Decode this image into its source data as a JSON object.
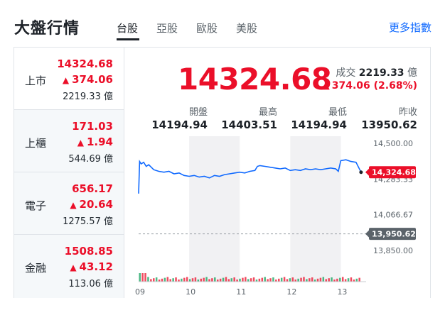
{
  "header": {
    "title": "大盤行情",
    "tabs": [
      {
        "label": "台股",
        "active": true
      },
      {
        "label": "亞股",
        "active": false
      },
      {
        "label": "歐股",
        "active": false
      },
      {
        "label": "美股",
        "active": false
      }
    ],
    "more_link": "更多指數"
  },
  "sidebar": {
    "items": [
      {
        "name": "上市",
        "price": "14324.68",
        "change": "374.06",
        "volume": "2219.33 億"
      },
      {
        "name": "上櫃",
        "price": "171.03",
        "change": "1.94",
        "volume": "544.69 億"
      },
      {
        "name": "電子",
        "price": "656.17",
        "change": "20.64",
        "volume": "1275.57 億"
      },
      {
        "name": "金融",
        "price": "1508.85",
        "change": "43.12",
        "volume": "113.06 億"
      }
    ]
  },
  "quote": {
    "price": "14324.68",
    "volume_label": "成交",
    "volume_value": "2219.33",
    "volume_unit": "億",
    "change": "374.06 (2.68%)",
    "stats": [
      {
        "label": "開盤",
        "value": "14194.94"
      },
      {
        "label": "最高",
        "value": "14403.51"
      },
      {
        "label": "最低",
        "value": "14194.94"
      },
      {
        "label": "昨收",
        "value": "13950.62"
      }
    ]
  },
  "colors": {
    "up": "#eb0f29",
    "line": "#0f69ff",
    "prev_close_tag": "#5b636a"
  },
  "chart_data": {
    "type": "line",
    "x_tick_labels": [
      "09",
      "10",
      "11",
      "12",
      "13"
    ],
    "x_range": [
      9.0,
      13.5
    ],
    "ylim": [
      13850,
      14500
    ],
    "y_tick_labels": [
      "14,500.00",
      "14,283.33",
      "14,066.67",
      "13,850.00"
    ],
    "current_price_label": "14,324.68",
    "prev_close_label": "13,950.62",
    "prev_close": 13950.62,
    "series": [
      {
        "x": [
          9.0,
          9.02,
          9.05,
          9.1,
          9.15,
          9.2,
          9.3,
          9.4,
          9.5,
          9.6,
          9.7,
          9.8,
          9.9,
          10.0,
          10.1,
          10.2,
          10.3,
          10.4,
          10.5,
          10.6,
          10.7,
          10.8,
          10.9,
          11.0,
          11.1,
          11.2,
          11.3,
          11.35,
          11.4,
          11.5,
          11.6,
          11.7,
          11.8,
          11.9,
          12.0,
          12.1,
          12.2,
          12.3,
          12.4,
          12.5,
          12.6,
          12.7,
          12.8,
          12.9,
          12.95,
          13.0,
          13.1,
          13.2,
          13.3,
          13.4
        ],
        "y": [
          14194.94,
          14390,
          14375,
          14385,
          14360,
          14370,
          14340,
          14330,
          14325,
          14330,
          14315,
          14320,
          14305,
          14300,
          14305,
          14295,
          14300,
          14290,
          14305,
          14300,
          14310,
          14315,
          14320,
          14325,
          14320,
          14330,
          14335,
          14360,
          14365,
          14360,
          14355,
          14350,
          14345,
          14350,
          14335,
          14340,
          14335,
          14345,
          14340,
          14345,
          14340,
          14345,
          14350,
          14345,
          14330,
          14395,
          14400,
          14390,
          14385,
          14324.68
        ]
      }
    ],
    "volume_bars": 80
  }
}
